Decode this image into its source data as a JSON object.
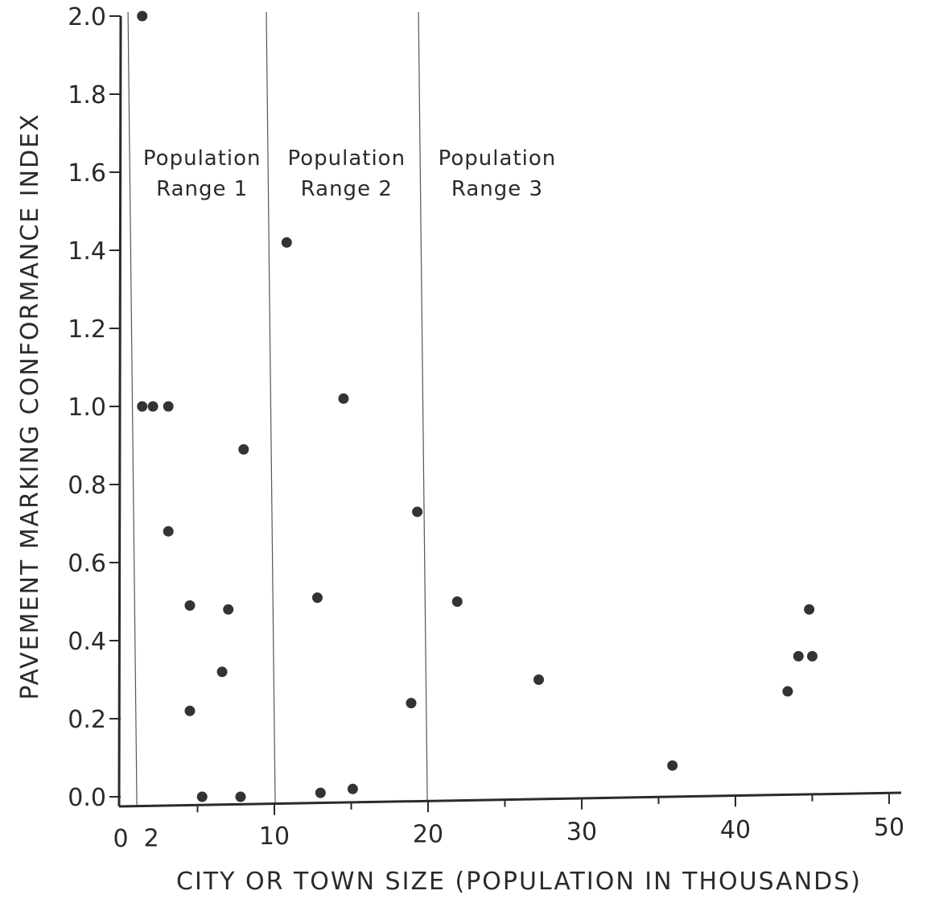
{
  "chart_data": {
    "type": "scatter",
    "title": "",
    "xlabel": "CITY OR TOWN SIZE (POPULATION IN THOUSANDS)",
    "ylabel": "PAVEMENT MARKING CONFORMANCE INDEX",
    "xlim": [
      0,
      50
    ],
    "ylim": [
      0,
      2.0
    ],
    "x_ticks": [
      {
        "value": 0,
        "label": "0"
      },
      {
        "value": 2,
        "label": "2"
      },
      {
        "value": 10,
        "label": "10"
      },
      {
        "value": 20,
        "label": "20"
      },
      {
        "value": 30,
        "label": "30"
      },
      {
        "value": 40,
        "label": "40"
      },
      {
        "value": 50,
        "label": "50"
      }
    ],
    "y_ticks": [
      {
        "value": 0.0,
        "label": "0.0"
      },
      {
        "value": 0.2,
        "label": "0.2"
      },
      {
        "value": 0.4,
        "label": "0.4"
      },
      {
        "value": 0.6,
        "label": "0.6"
      },
      {
        "value": 0.8,
        "label": "0.8"
      },
      {
        "value": 1.0,
        "label": "1.0"
      },
      {
        "value": 1.2,
        "label": "1.2"
      },
      {
        "value": 1.4,
        "label": "1.4"
      },
      {
        "value": 1.6,
        "label": "1.6"
      },
      {
        "value": 1.8,
        "label": "1.8"
      },
      {
        "value": 2.0,
        "label": "2.0"
      }
    ],
    "grid": false,
    "range_boundaries": [
      1.0,
      10.0,
      19.9
    ],
    "range_labels": [
      {
        "line1": "Population",
        "line2": "Range 1",
        "x_center": 5.3
      },
      {
        "line1": "Population",
        "line2": "Range 2",
        "x_center": 14.7
      },
      {
        "line1": "Population",
        "line2": "Range 3",
        "x_center": 24.5
      }
    ],
    "points": [
      {
        "x": 1.4,
        "y": 2.0
      },
      {
        "x": 1.4,
        "y": 1.0
      },
      {
        "x": 2.1,
        "y": 1.0
      },
      {
        "x": 3.1,
        "y": 1.0
      },
      {
        "x": 3.1,
        "y": 0.68
      },
      {
        "x": 4.5,
        "y": 0.49
      },
      {
        "x": 4.5,
        "y": 0.22
      },
      {
        "x": 5.3,
        "y": 0.0
      },
      {
        "x": 6.6,
        "y": 0.32
      },
      {
        "x": 7.0,
        "y": 0.48
      },
      {
        "x": 7.8,
        "y": 0.0
      },
      {
        "x": 8.0,
        "y": 0.89
      },
      {
        "x": 10.8,
        "y": 1.42
      },
      {
        "x": 12.8,
        "y": 0.51
      },
      {
        "x": 13.0,
        "y": 0.01
      },
      {
        "x": 14.5,
        "y": 1.02
      },
      {
        "x": 15.1,
        "y": 0.02
      },
      {
        "x": 18.9,
        "y": 0.24
      },
      {
        "x": 19.3,
        "y": 0.73
      },
      {
        "x": 21.9,
        "y": 0.5
      },
      {
        "x": 27.2,
        "y": 0.3
      },
      {
        "x": 35.9,
        "y": 0.08
      },
      {
        "x": 43.4,
        "y": 0.27
      },
      {
        "x": 44.1,
        "y": 0.36
      },
      {
        "x": 44.8,
        "y": 0.48
      },
      {
        "x": 45.0,
        "y": 0.36
      }
    ]
  }
}
